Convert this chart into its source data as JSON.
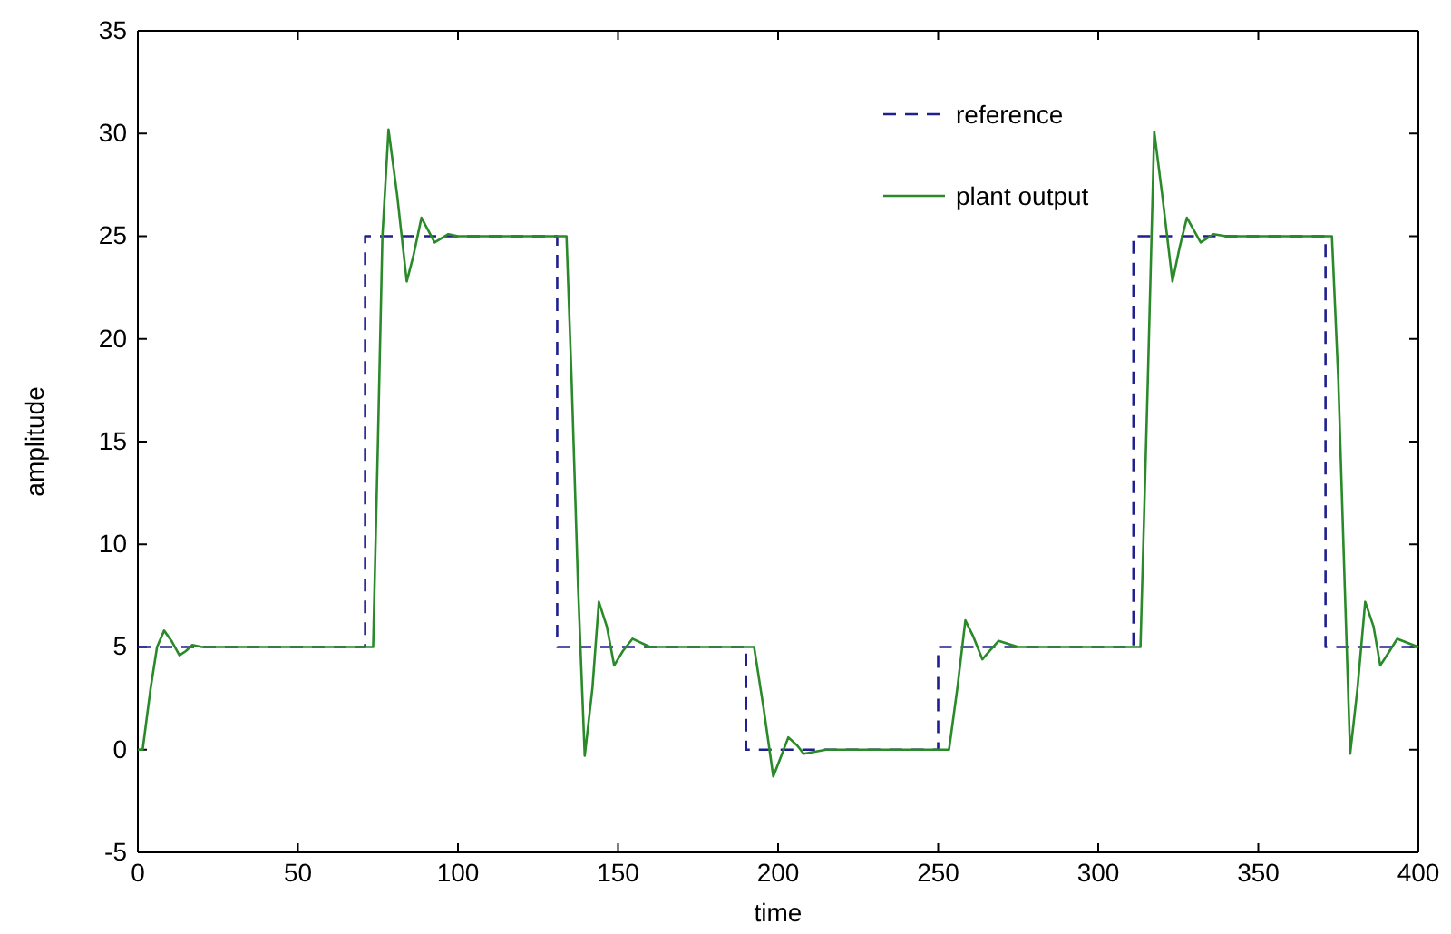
{
  "chart_data": {
    "type": "line",
    "xlabel": "time",
    "ylabel": "amplitude",
    "xlim": [
      0,
      400
    ],
    "ylim": [
      -5,
      35
    ],
    "xticks": [
      0,
      50,
      100,
      150,
      200,
      250,
      300,
      350,
      400
    ],
    "yticks": [
      -5,
      0,
      5,
      10,
      15,
      20,
      25,
      30,
      35
    ],
    "grid": false,
    "legend": "top right",
    "marker": "none",
    "series": [
      {
        "name": "reference",
        "type": "step",
        "color": "#1f1f8f",
        "line_style": "dashed",
        "x": [
          0,
          71,
          131,
          190,
          250,
          311,
          371,
          400
        ],
        "values": [
          5,
          25,
          5,
          0,
          5,
          25,
          5,
          5
        ]
      },
      {
        "name": "plant output",
        "type": "line",
        "color": "#2a8a2a",
        "line_style": "solid",
        "x": [
          0,
          1.5,
          4,
          6,
          8.2,
          10.5,
          13,
          15,
          17,
          20,
          73.5,
          75,
          76.4,
          78.3,
          81,
          84,
          86,
          88.6,
          92.7,
          97,
          100,
          133.9,
          135.5,
          137.5,
          139.6,
          142,
          144,
          146.5,
          148.8,
          151.5,
          154.5,
          160,
          192.5,
          195.5,
          198.5,
          201,
          203.2,
          206,
          208,
          215,
          253.4,
          256,
          258.5,
          261,
          263.8,
          266,
          268.9,
          275,
          313.2,
          315.5,
          317.5,
          320,
          323.2,
          325.5,
          327.7,
          332,
          336,
          340,
          373,
          375,
          377,
          378.7,
          381,
          383.4,
          386,
          388.1,
          391,
          393.4,
          400
        ],
        "values": [
          0,
          0,
          3,
          5,
          5.8,
          5.3,
          4.6,
          4.8,
          5.1,
          5,
          5,
          15,
          25,
          30.2,
          27,
          22.8,
          24,
          25.9,
          24.7,
          25.1,
          25,
          25,
          18,
          8,
          -0.3,
          3,
          7.2,
          6,
          4.1,
          4.8,
          5.4,
          5,
          5,
          2,
          -1.3,
          -0.3,
          0.6,
          0.2,
          -0.2,
          0,
          0,
          3,
          6.3,
          5.5,
          4.4,
          4.8,
          5.3,
          5,
          5,
          18,
          30.1,
          27,
          22.8,
          24.5,
          25.9,
          24.7,
          25.1,
          25,
          25,
          18,
          8,
          -0.2,
          3,
          7.2,
          6,
          4.1,
          4.8,
          5.4,
          5
        ]
      }
    ]
  }
}
